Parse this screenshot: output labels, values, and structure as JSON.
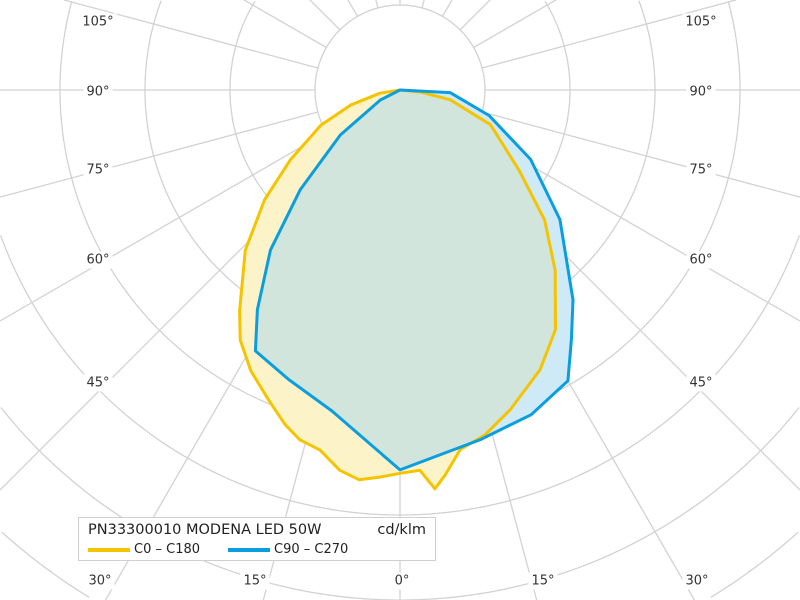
{
  "chart_data": {
    "type": "polar",
    "title": "PN33300010 MODENA LED 50W",
    "unit": "cd/klm",
    "angle_zero": "down",
    "angle_step_deg": 15,
    "angle_labels_left": [
      "105°",
      "90°",
      "75°",
      "60°",
      "45°"
    ],
    "angle_labels_right": [
      "105°",
      "90°",
      "75°",
      "60°",
      "45°"
    ],
    "angle_labels_bottom": [
      "30°",
      "15°",
      "0°",
      "15°",
      "30°"
    ],
    "grid": true,
    "legend_placement": "bottom-left",
    "series": [
      {
        "name": "C0 – C180",
        "color": "#f5c400",
        "fill": "#fdf3c8",
        "points": [
          [
            -90,
            0
          ],
          [
            -81,
            0.24
          ],
          [
            -73,
            0.61
          ],
          [
            -66,
            1.02
          ],
          [
            -57.5,
            1.53
          ],
          [
            -51,
            2.05
          ],
          [
            -44,
            2.62
          ],
          [
            -36,
            3.21
          ],
          [
            -32.6,
            3.49
          ],
          [
            -28,
            3.74
          ],
          [
            -23,
            3.96
          ],
          [
            -19,
            4.16
          ],
          [
            -16,
            4.28
          ],
          [
            -12.5,
            4.34
          ],
          [
            -9,
            4.53
          ],
          [
            -6,
            4.61
          ],
          [
            -3,
            4.56
          ],
          [
            0,
            4.51
          ],
          [
            3,
            4.48
          ],
          [
            5,
            4.71
          ],
          [
            6.7,
            4.56
          ],
          [
            9.5,
            4.29
          ],
          [
            13.8,
            4.18
          ],
          [
            19,
            3.98
          ],
          [
            26.6,
            3.68
          ],
          [
            33,
            3.36
          ],
          [
            40.7,
            2.8
          ],
          [
            48,
            2.29
          ],
          [
            56,
            1.69
          ],
          [
            69,
            1.14
          ],
          [
            79,
            0.6
          ],
          [
            84,
            0.24
          ],
          [
            90,
            0
          ]
        ]
      },
      {
        "name": "C90 – C270",
        "color": "#0a9ee0",
        "fill": "#cdeaf6",
        "points": [
          [
            -90,
            0
          ],
          [
            -63,
            0.26
          ],
          [
            -58,
            0.4
          ],
          [
            -53,
            0.88
          ],
          [
            -45,
            1.66
          ],
          [
            -39,
            2.42
          ],
          [
            -33,
            3.08
          ],
          [
            -29,
            3.51
          ],
          [
            -21,
            3.65
          ],
          [
            -12,
            3.86
          ],
          [
            0,
            4.47
          ],
          [
            13,
            4.22
          ],
          [
            22,
            4.12
          ],
          [
            30,
            3.95
          ],
          [
            34.5,
            3.56
          ],
          [
            39.5,
            3.2
          ],
          [
            51,
            2.42
          ],
          [
            62,
            1.74
          ],
          [
            74,
            1.09
          ],
          [
            87,
            0.59
          ],
          [
            90,
            0
          ]
        ]
      }
    ],
    "overlap_fill": "#d2e5dc",
    "grid_color": "#d2d2d2"
  }
}
